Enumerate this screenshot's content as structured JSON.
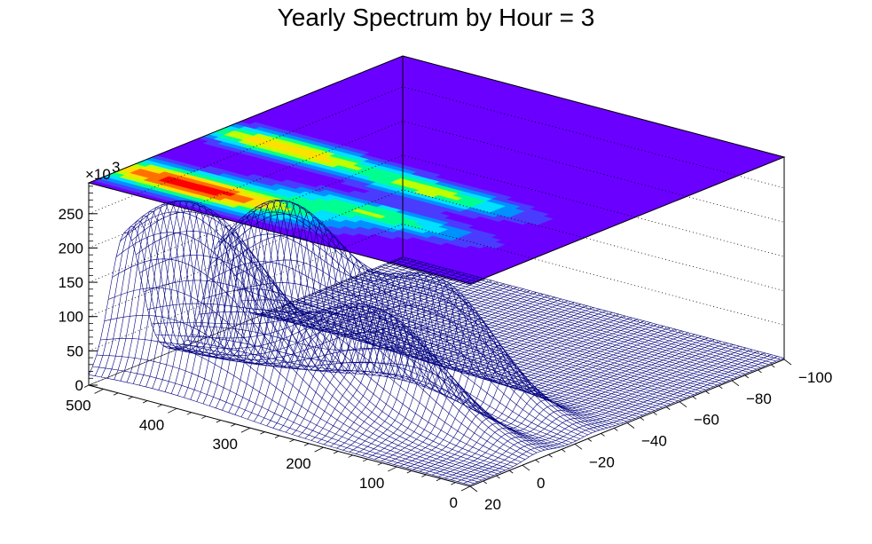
{
  "chart_data": {
    "type": "surface",
    "title": "Yearly Spectrum by Hour = 3",
    "z_multiplier": "×10³",
    "z_exponent": "3",
    "z_ticks": [
      0,
      50,
      100,
      150,
      200,
      250
    ],
    "z_range": [
      0,
      295000
    ],
    "x_ticks": [
      20,
      0,
      -20,
      -40,
      -60,
      -80,
      -100
    ],
    "x_range": [
      20,
      -100
    ],
    "y_ticks": [
      0,
      100,
      200,
      300,
      400,
      500
    ],
    "y_range": [
      0,
      520
    ],
    "surface_color": "#00007f",
    "colormap": [
      "#6a00ff",
      "#4a3cff",
      "#0090ff",
      "#00e0ff",
      "#00ff90",
      "#c0ff00",
      "#ffe000",
      "#ff7000",
      "#ff0000"
    ],
    "peaks": [
      {
        "x": 6,
        "y": 430,
        "sigma_x": 6,
        "sigma_y": 90,
        "height": 270000
      },
      {
        "x": -6,
        "y": 220,
        "sigma_x": 5,
        "sigma_y": 70,
        "height": 150000
      },
      {
        "x": -30,
        "y": 430,
        "sigma_x": 5,
        "sigma_y": 70,
        "height": 215000
      },
      {
        "x": -27,
        "y": 210,
        "sigma_x": 5,
        "sigma_y": 60,
        "height": 160000
      }
    ]
  }
}
